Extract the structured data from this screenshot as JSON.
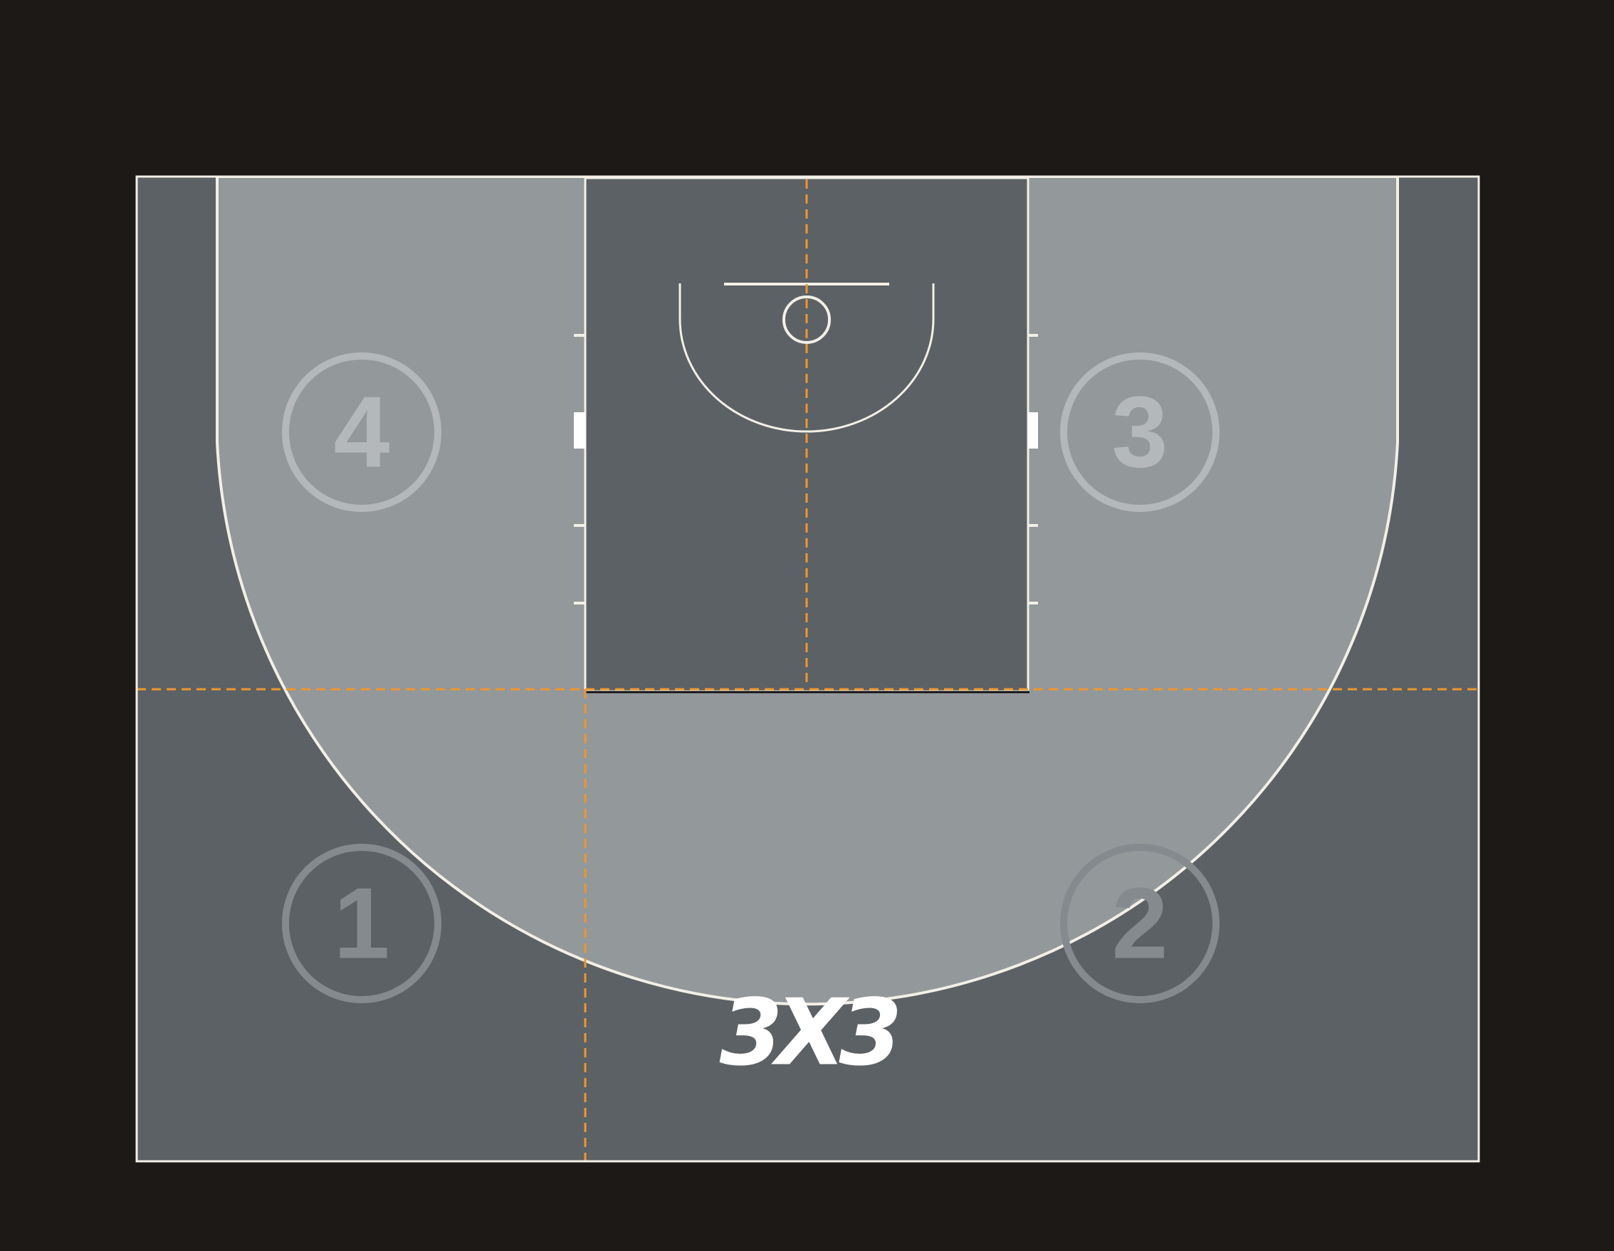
{
  "colors": {
    "background": "#1d1917",
    "court_dark": "#5c6165",
    "court_light": "#93989b",
    "court_lines": "#f2f0e6",
    "guide_lines": "#f0962a",
    "zone_circle_on_light": "#b4b8bb",
    "zone_circle_on_dark": "#858a8e",
    "logo": "#ffffff"
  },
  "zones": [
    {
      "id": "zone-1",
      "label": "1",
      "area": "bottom-left"
    },
    {
      "id": "zone-2",
      "label": "2",
      "area": "bottom-right"
    },
    {
      "id": "zone-3",
      "label": "3",
      "area": "top-right"
    },
    {
      "id": "zone-4",
      "label": "4",
      "area": "top-left"
    }
  ],
  "logo": {
    "text": "3X3",
    "icon": "3x3-logo-icon"
  },
  "guides": {
    "style": "dashed",
    "lines": [
      "horizontal-mid-court",
      "vertical-left-lane",
      "vertical-center-lane"
    ]
  }
}
